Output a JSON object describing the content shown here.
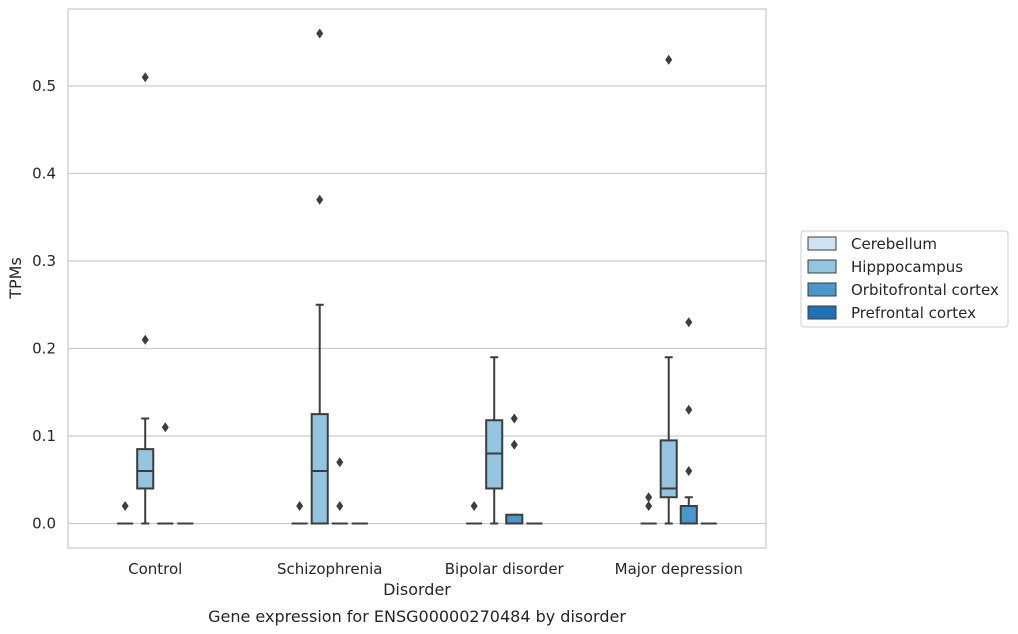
{
  "chart_data": {
    "type": "box",
    "title": "",
    "caption": "Gene expression for ENSG00000270484 by disorder",
    "xlabel": "Disorder",
    "ylabel": "TPMs",
    "ylim": [
      -0.028,
      0.588
    ],
    "yticks": [
      "0.0",
      "0.1",
      "0.2",
      "0.3",
      "0.4",
      "0.5"
    ],
    "ytick_values": [
      0.0,
      0.1,
      0.2,
      0.3,
      0.4,
      0.5
    ],
    "grid": "horizontal",
    "legend_position": "right",
    "categories": [
      "Control",
      "Schizophrenia",
      "Bipolar disorder",
      "Major depression"
    ],
    "series": [
      {
        "name": "Cerebellum",
        "color": "#d0e1f2",
        "boxes": [
          {
            "min": 0.0,
            "q1": 0.0,
            "median": 0.0,
            "q3": 0.0,
            "max": 0.0,
            "outliers": [
              0.02
            ]
          },
          {
            "min": 0.0,
            "q1": 0.0,
            "median": 0.0,
            "q3": 0.0,
            "max": 0.0,
            "outliers": [
              0.02
            ]
          },
          {
            "min": 0.0,
            "q1": 0.0,
            "median": 0.0,
            "q3": 0.0,
            "max": 0.0,
            "outliers": [
              0.02
            ]
          },
          {
            "min": 0.0,
            "q1": 0.0,
            "median": 0.0,
            "q3": 0.0,
            "max": 0.0,
            "outliers": [
              0.02,
              0.03
            ]
          }
        ]
      },
      {
        "name": "Hipppocampus",
        "color": "#94c4df",
        "boxes": [
          {
            "min": 0.0,
            "q1": 0.04,
            "median": 0.06,
            "q3": 0.085,
            "max": 0.12,
            "outliers": [
              0.21,
              0.51
            ]
          },
          {
            "min": 0.0,
            "q1": 0.0,
            "median": 0.06,
            "q3": 0.125,
            "max": 0.25,
            "outliers": [
              0.37,
              0.56
            ]
          },
          {
            "min": 0.0,
            "q1": 0.04,
            "median": 0.08,
            "q3": 0.118,
            "max": 0.19,
            "outliers": []
          },
          {
            "min": 0.0,
            "q1": 0.03,
            "median": 0.04,
            "q3": 0.095,
            "max": 0.19,
            "outliers": [
              0.53
            ]
          }
        ]
      },
      {
        "name": "Orbitofrontal cortex",
        "color": "#4a98c9",
        "boxes": [
          {
            "min": 0.0,
            "q1": 0.0,
            "median": 0.0,
            "q3": 0.0,
            "max": 0.0,
            "outliers": [
              0.11
            ]
          },
          {
            "min": 0.0,
            "q1": 0.0,
            "median": 0.0,
            "q3": 0.0,
            "max": 0.0,
            "outliers": [
              0.02,
              0.07
            ]
          },
          {
            "min": 0.0,
            "q1": 0.0,
            "median": 0.0,
            "q3": 0.01,
            "max": 0.01,
            "outliers": [
              0.09,
              0.12
            ]
          },
          {
            "min": 0.0,
            "q1": 0.0,
            "median": 0.0,
            "q3": 0.02,
            "max": 0.03,
            "outliers": [
              0.06,
              0.13,
              0.23
            ]
          }
        ]
      },
      {
        "name": "Prefrontal cortex",
        "color": "#2070b4",
        "boxes": [
          {
            "min": 0.0,
            "q1": 0.0,
            "median": 0.0,
            "q3": 0.0,
            "max": 0.0,
            "outliers": []
          },
          {
            "min": 0.0,
            "q1": 0.0,
            "median": 0.0,
            "q3": 0.0,
            "max": 0.0,
            "outliers": []
          },
          {
            "min": 0.0,
            "q1": 0.0,
            "median": 0.0,
            "q3": 0.0,
            "max": 0.0,
            "outliers": []
          },
          {
            "min": 0.0,
            "q1": 0.0,
            "median": 0.0,
            "q3": 0.0,
            "max": 0.0,
            "outliers": []
          }
        ]
      }
    ]
  }
}
